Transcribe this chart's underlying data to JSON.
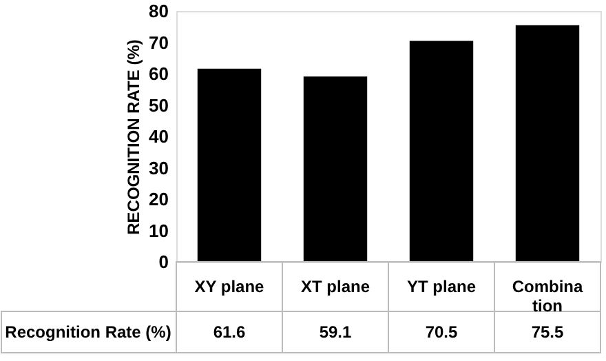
{
  "chart_data": {
    "type": "bar",
    "ylabel": "RECOGNITION RATE (%)",
    "categories": [
      "XY plane",
      "XT plane",
      "YT plane",
      "Combination"
    ],
    "series": [
      {
        "name": "Recognition Rate (%)",
        "color": "#000000",
        "values": [
          61.6,
          59.1,
          70.5,
          75.5
        ]
      }
    ],
    "ylim": [
      0,
      80
    ],
    "yticks": [
      0,
      10,
      20,
      30,
      40,
      50,
      60,
      70,
      80
    ],
    "grid": false,
    "data_labels": true
  }
}
